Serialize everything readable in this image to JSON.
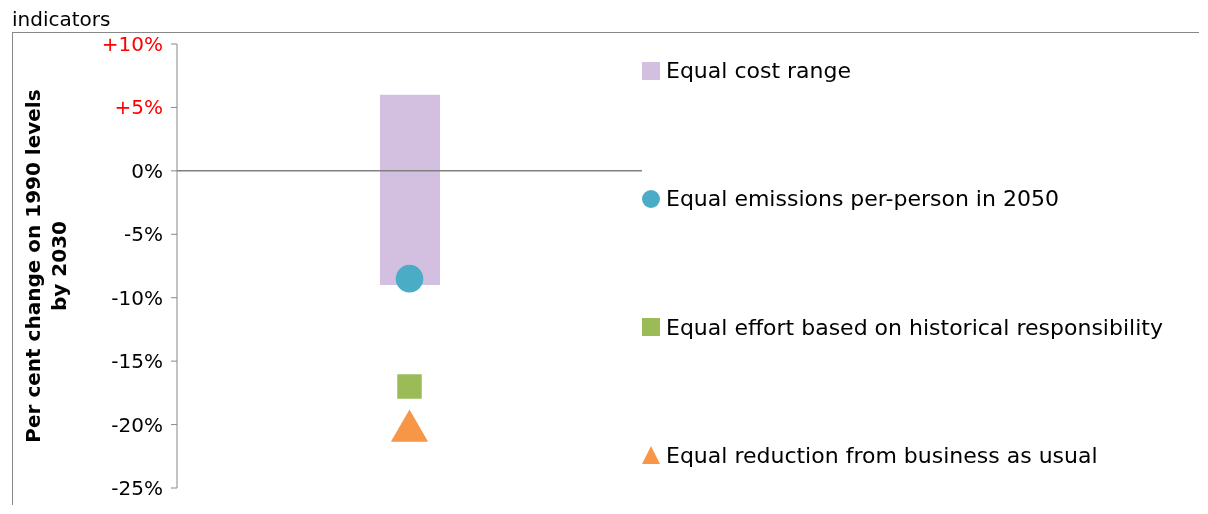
{
  "chart_data": {
    "type": "bar",
    "title": "indicators",
    "ylabel": "Per cent change on 1990 levels\nby 2030",
    "categories": [
      null
    ],
    "series": [
      {
        "name": "Equal cost range",
        "color": "#d3c0e1",
        "values": [
          15
        ],
        "base": [
          -9
        ]
      },
      {
        "name": "Equal emissions per-person in 2050",
        "type": "scatter",
        "marker": "circle",
        "color": "#4bacc6",
        "values": [
          -8.5
        ]
      },
      {
        "name": "Equal effort based on historical responsibility",
        "type": "scatter",
        "marker": "square",
        "color": "#9bbb59",
        "values": [
          -17
        ]
      },
      {
        "name": "Equal reduction from business as usual",
        "type": "scatter",
        "marker": "triangle",
        "color": "#f79646",
        "values": [
          -20.5
        ]
      }
    ],
    "ylim": [
      -25,
      10
    ],
    "yticks": [
      {
        "value": 10,
        "label": "+10%"
      },
      {
        "value": 5,
        "label": "+5%"
      },
      {
        "value": 0,
        "label": "0%"
      },
      {
        "value": -5,
        "label": "-5%"
      },
      {
        "value": -10,
        "label": "-10%"
      },
      {
        "value": -15,
        "label": "-15%"
      },
      {
        "value": -20,
        "label": "-20%"
      },
      {
        "value": -25,
        "label": "-25%"
      }
    ],
    "ref_lines": [
      {
        "axis": "y",
        "value": 0,
        "color": "#808080"
      }
    ],
    "grid": false,
    "legend": "right"
  }
}
